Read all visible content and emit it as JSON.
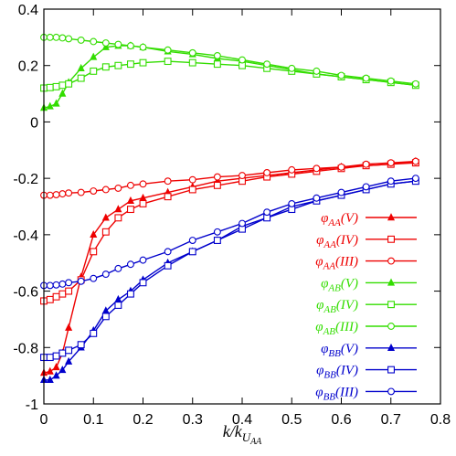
{
  "chart_data": {
    "type": "line",
    "title": "",
    "xlabel": "k/k_{U_AA}",
    "ylabel": "",
    "xlim": [
      0,
      0.8
    ],
    "ylim": [
      -1,
      0.4
    ],
    "xticks": [
      "0",
      "0.1",
      "0.2",
      "0.3",
      "0.4",
      "0.5",
      "0.6",
      "0.7",
      "0.8"
    ],
    "yticks": [
      "0.4",
      "0.2",
      "0",
      "-0.2",
      "-0.4",
      "-0.6",
      "-0.8",
      "-1"
    ],
    "xtick_values": [
      0,
      0.1,
      0.2,
      0.3,
      0.4,
      0.5,
      0.6,
      0.7,
      0.8
    ],
    "ytick_values": [
      0.4,
      0.2,
      0,
      -0.2,
      -0.4,
      -0.6,
      -0.8,
      -1
    ],
    "grid": false,
    "legend_position": "right",
    "x": [
      0,
      0.0125,
      0.025,
      0.0375,
      0.05,
      0.075,
      0.1,
      0.125,
      0.15,
      0.175,
      0.2,
      0.25,
      0.3,
      0.35,
      0.4,
      0.45,
      0.5,
      0.55,
      0.6,
      0.65,
      0.7,
      0.75
    ],
    "series": [
      {
        "name": "φ_AA(V)",
        "color": "#ee0000",
        "marker": "triangle",
        "values": [
          -0.89,
          -0.885,
          -0.87,
          -0.82,
          -0.73,
          -0.55,
          -0.4,
          -0.34,
          -0.31,
          -0.28,
          -0.27,
          -0.25,
          -0.23,
          -0.21,
          -0.2,
          -0.19,
          -0.18,
          -0.17,
          -0.16,
          -0.155,
          -0.15,
          -0.14
        ]
      },
      {
        "name": "φ_AA(IV)",
        "color": "#ee0000",
        "marker": "square",
        "values": [
          -0.635,
          -0.63,
          -0.62,
          -0.61,
          -0.6,
          -0.56,
          -0.46,
          -0.39,
          -0.34,
          -0.31,
          -0.29,
          -0.265,
          -0.24,
          -0.225,
          -0.21,
          -0.195,
          -0.185,
          -0.175,
          -0.165,
          -0.155,
          -0.15,
          -0.145
        ]
      },
      {
        "name": "φ_AA(III)",
        "color": "#ee0000",
        "marker": "circle",
        "values": [
          -0.26,
          -0.26,
          -0.258,
          -0.255,
          -0.252,
          -0.25,
          -0.245,
          -0.24,
          -0.235,
          -0.225,
          -0.22,
          -0.21,
          -0.205,
          -0.195,
          -0.19,
          -0.18,
          -0.17,
          -0.165,
          -0.16,
          -0.15,
          -0.145,
          -0.14
        ]
      },
      {
        "name": "φ_AB(V)",
        "color": "#33dd00",
        "marker": "triangle",
        "values": [
          0.05,
          0.055,
          0.065,
          0.1,
          0.14,
          0.19,
          0.23,
          0.265,
          0.27,
          0.27,
          0.265,
          0.25,
          0.24,
          0.225,
          0.215,
          0.2,
          0.185,
          0.17,
          0.16,
          0.15,
          0.14,
          0.13
        ]
      },
      {
        "name": "φ_AB(IV)",
        "color": "#33dd00",
        "marker": "square",
        "values": [
          0.12,
          0.122,
          0.125,
          0.13,
          0.135,
          0.155,
          0.18,
          0.195,
          0.2,
          0.205,
          0.21,
          0.215,
          0.21,
          0.205,
          0.2,
          0.19,
          0.18,
          0.17,
          0.16,
          0.15,
          0.14,
          0.13
        ]
      },
      {
        "name": "φ_AB(III)",
        "color": "#33dd00",
        "marker": "circle",
        "values": [
          0.3,
          0.3,
          0.3,
          0.298,
          0.295,
          0.29,
          0.285,
          0.28,
          0.275,
          0.27,
          0.265,
          0.255,
          0.245,
          0.235,
          0.22,
          0.205,
          0.19,
          0.18,
          0.165,
          0.155,
          0.145,
          0.135
        ]
      },
      {
        "name": "φ_BB(V)",
        "color": "#0000cc",
        "marker": "triangle",
        "values": [
          -0.915,
          -0.915,
          -0.9,
          -0.88,
          -0.85,
          -0.8,
          -0.74,
          -0.67,
          -0.63,
          -0.6,
          -0.56,
          -0.5,
          -0.46,
          -0.42,
          -0.37,
          -0.34,
          -0.3,
          -0.28,
          -0.26,
          -0.24,
          -0.22,
          -0.21
        ]
      },
      {
        "name": "φ_BB(IV)",
        "color": "#0000cc",
        "marker": "square",
        "values": [
          -0.835,
          -0.835,
          -0.83,
          -0.82,
          -0.81,
          -0.79,
          -0.75,
          -0.69,
          -0.65,
          -0.61,
          -0.57,
          -0.51,
          -0.46,
          -0.42,
          -0.38,
          -0.34,
          -0.31,
          -0.28,
          -0.26,
          -0.24,
          -0.22,
          -0.21
        ]
      },
      {
        "name": "φ_BB(III)",
        "color": "#0000cc",
        "marker": "circle",
        "values": [
          -0.58,
          -0.58,
          -0.578,
          -0.575,
          -0.57,
          -0.565,
          -0.555,
          -0.54,
          -0.52,
          -0.505,
          -0.49,
          -0.46,
          -0.42,
          -0.39,
          -0.36,
          -0.32,
          -0.29,
          -0.27,
          -0.25,
          -0.23,
          -0.21,
          -0.2
        ]
      }
    ]
  },
  "legend": [
    {
      "main": "φ",
      "sub": "AA",
      "tail": "(V)"
    },
    {
      "main": "φ",
      "sub": "AA",
      "tail": "(IV)"
    },
    {
      "main": "φ",
      "sub": "AA",
      "tail": "(III)"
    },
    {
      "main": "φ",
      "sub": "AB",
      "tail": "(V)"
    },
    {
      "main": "φ",
      "sub": "AB",
      "tail": "(IV)"
    },
    {
      "main": "φ",
      "sub": "AB",
      "tail": "(III)"
    },
    {
      "main": "φ",
      "sub": "BB",
      "tail": "(V)"
    },
    {
      "main": "φ",
      "sub": "BB",
      "tail": "(IV)"
    },
    {
      "main": "φ",
      "sub": "BB",
      "tail": "(III)"
    }
  ],
  "axis_label": {
    "main": "k/k",
    "sub": "U",
    "subsub": "AA"
  }
}
